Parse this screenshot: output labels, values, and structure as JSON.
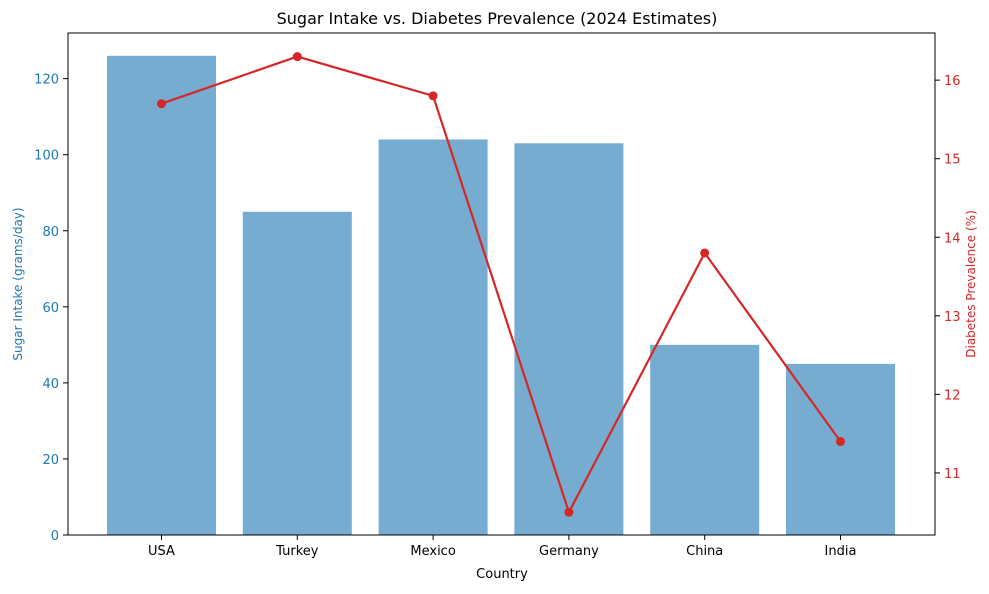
{
  "chart_data": {
    "type": "bar+line",
    "title": "Sugar Intake vs. Diabetes Prevalence (2024 Estimates)",
    "xlabel": "Country",
    "categories": [
      "USA",
      "Turkey",
      "Mexico",
      "Germany",
      "China",
      "India"
    ],
    "series": [
      {
        "name": "Sugar Intake (grams/day)",
        "type": "bar",
        "axis": "left",
        "color": "#76acd0",
        "values": [
          126,
          85,
          104,
          103,
          50,
          45
        ]
      },
      {
        "name": "Diabetes Prevalence (%)",
        "type": "line",
        "axis": "right",
        "color": "#d62728",
        "values": [
          15.7,
          16.3,
          15.8,
          10.5,
          13.8,
          11.4
        ]
      }
    ],
    "y_left": {
      "label": "Sugar Intake (grams/day)",
      "color": "#1f77b4",
      "ylim": [
        0,
        132
      ],
      "ticks": [
        0,
        20,
        40,
        60,
        80,
        100,
        120
      ]
    },
    "y_right": {
      "label": "Diabetes Prevalence (%)",
      "color": "#d62728",
      "ylim": [
        10.21,
        16.6
      ],
      "ticks": [
        11,
        12,
        13,
        14,
        15,
        16
      ]
    },
    "grid": false,
    "legend": "none"
  }
}
